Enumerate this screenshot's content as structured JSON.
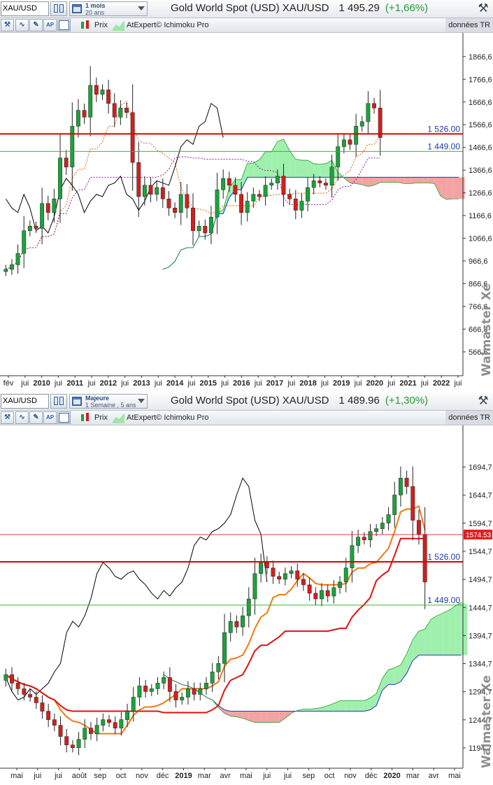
{
  "panels": [
    {
      "symbol": "XAU/USD",
      "period_line1": "1 mois",
      "period_line2": "20 ans",
      "title": "Gold World Spot (USD) XAU/USD",
      "quote": "1 495.29",
      "change": "(+1,66%)",
      "toolbar": {
        "price_label": "Prix",
        "indicator_label": "AtExpert© Ichimoku Pro",
        "data_source": "données TR"
      },
      "watermark": "Walmaster Xe",
      "colors": {
        "bull": "#1aa33a",
        "bear": "#d51d1d",
        "cloud_bull": "#9ff0ad",
        "cloud_bear": "#f4a3a3",
        "support": "#2bbf2b",
        "resistance": "#e00000"
      },
      "chart_data": {
        "type": "candlestick",
        "indicator": "Ichimoku",
        "y_ticks": [
          "1866,6",
          "1766,6",
          "1666,6",
          "1566,6",
          "1466,6",
          "1366,6",
          "1266,6",
          "1166,6",
          "1066,6",
          "966,6",
          "866,6",
          "766,6",
          "666,6",
          "566,6"
        ],
        "x_ticks": [
          "fév",
          "jui",
          "2010",
          "jui",
          "2011",
          "jui",
          "2012",
          "jui",
          "2013",
          "jui",
          "2014",
          "jui",
          "2015",
          "jui",
          "2016",
          "jui",
          "2017",
          "jui",
          "2018",
          "jui",
          "2019",
          "jui",
          "2020",
          "jui",
          "2021",
          "jui",
          "2022",
          "jui"
        ],
        "levels": [
          {
            "value": 1526,
            "label": "1 526.00",
            "color": "#e00000"
          },
          {
            "value": 1449,
            "label": "1 449.00",
            "color": "#2bbf2b"
          }
        ],
        "ylim": [
          480,
          1940
        ],
        "close": [
          930,
          950,
          1000,
          1100,
          1120,
          1110,
          1220,
          1180,
          1240,
          1420,
          1380,
          1560,
          1630,
          1600,
          1740,
          1700,
          1720,
          1660,
          1600,
          1640,
          1620,
          1400,
          1250,
          1300,
          1260,
          1290,
          1240,
          1200,
          1180,
          1260,
          1200,
          1100,
          1120,
          1090,
          1160,
          1280,
          1330,
          1300,
          1260,
          1180,
          1230,
          1260,
          1250,
          1300,
          1310,
          1340,
          1260,
          1240,
          1190,
          1230,
          1290,
          1320,
          1310,
          1300,
          1380,
          1470,
          1500,
          1480,
          1560,
          1580,
          1660,
          1640,
          1510
        ]
      }
    },
    {
      "symbol": "XAU/USD",
      "period_line1": "Majeure",
      "period_line2": "1 Semaine , 5 ans",
      "title": "Gold World Spot (USD) XAU/USD",
      "quote": "1 489.96",
      "change": "(+1,30%)",
      "toolbar": {
        "price_label": "Prix",
        "indicator_label": "AtExpert© Ichimoku Pro",
        "data_source": "données TR"
      },
      "watermark": "Walmaster Xe",
      "colors": {
        "bull": "#1aa33a",
        "bear": "#d51d1d",
        "cloud_bull": "#9ff0ad",
        "cloud_bear": "#f4a3a3",
        "support": "#2bbf2b",
        "resistance": "#e00000",
        "last_price_bg": "#e02020"
      },
      "chart_data": {
        "type": "candlestick",
        "indicator": "Ichimoku",
        "y_ticks": [
          "1694,7",
          "1644,7",
          "1594,7",
          "1544,7",
          "1494,7",
          "1444,7",
          "1394,7",
          "1344,7",
          "1294,7",
          "1244,7",
          "1194,7"
        ],
        "x_ticks": [
          "mai",
          "jui",
          "jui",
          "août",
          "sep",
          "oct",
          "nov",
          "déc",
          "2019",
          "mar",
          "avr",
          "mai",
          "jui",
          "jui",
          "sep",
          "oct",
          "nov",
          "déc",
          "2020",
          "mar",
          "avr",
          "mai"
        ],
        "levels": [
          {
            "value": 1574.53,
            "label": "1574.53",
            "color": "#e02020",
            "badge": true
          },
          {
            "value": 1526,
            "label": "1 526.00",
            "color": "#e00000"
          },
          {
            "value": 1449,
            "label": "1 449.00",
            "color": "#2bbf2b"
          }
        ],
        "ylim": [
          1166,
          1744
        ],
        "close": [
          1325,
          1310,
          1300,
          1290,
          1285,
          1275,
          1260,
          1245,
          1235,
          1215,
          1200,
          1195,
          1210,
          1230,
          1220,
          1235,
          1245,
          1240,
          1230,
          1245,
          1260,
          1285,
          1305,
          1295,
          1300,
          1310,
          1320,
          1295,
          1280,
          1285,
          1300,
          1290,
          1300,
          1310,
          1330,
          1345,
          1400,
          1420,
          1410,
          1430,
          1460,
          1505,
          1525,
          1515,
          1500,
          1495,
          1505,
          1510,
          1495,
          1485,
          1470,
          1460,
          1475,
          1465,
          1480,
          1490,
          1515,
          1555,
          1570,
          1565,
          1580,
          1585,
          1595,
          1610,
          1645,
          1675,
          1660,
          1600,
          1575,
          1490
        ]
      }
    }
  ]
}
